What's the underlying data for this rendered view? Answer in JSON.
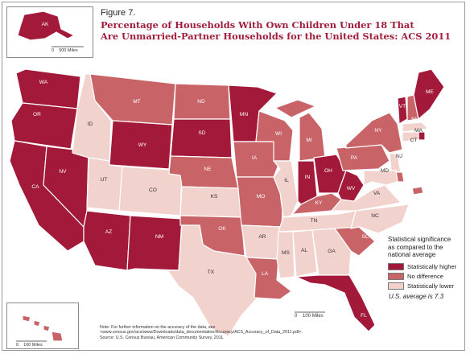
{
  "figure": {
    "label": "Figure 7.",
    "title_line1": "Percentage of Households With Own Children Under 18 That",
    "title_line2": "Are Unmarried-Partner Households for the United States: ACS 2011"
  },
  "colors": {
    "higher": "#a3193a",
    "no_difference": "#c86468",
    "lower": "#f2d2cc",
    "border": "#ffffff"
  },
  "legend": {
    "title_line1": "Statistical significance",
    "title_line2": "as compared to the",
    "title_line3": "national average",
    "items": [
      {
        "label": "Statistically higher",
        "category": "higher"
      },
      {
        "label": "No difference",
        "category": "no_difference"
      },
      {
        "label": "Statistically lower",
        "category": "lower"
      }
    ],
    "average_note": "U.S. average is 7.3"
  },
  "scales": {
    "main": {
      "zero": "0",
      "label": "100 Miles"
    },
    "alaska": {
      "zero": "0",
      "label": "500 Miles"
    },
    "hawaii": {
      "zero": "0",
      "label": "100 Miles"
    }
  },
  "note": {
    "line1": "Note: For further information on the accuracy of the data, see",
    "line2": "<www.census.gov/acs/www/Downloads/data_documentation/Accuracy/ACS_Accuracy_of_Data_2011.pdf>.",
    "line3": "Source: U.S. Census Bureau, American Community Survey, 2011."
  },
  "states": [
    {
      "abbr": "WA",
      "category": "higher"
    },
    {
      "abbr": "OR",
      "category": "higher"
    },
    {
      "abbr": "CA",
      "category": "higher"
    },
    {
      "abbr": "NV",
      "category": "higher"
    },
    {
      "abbr": "ID",
      "category": "lower"
    },
    {
      "abbr": "MT",
      "category": "no_difference"
    },
    {
      "abbr": "WY",
      "category": "higher"
    },
    {
      "abbr": "UT",
      "category": "lower"
    },
    {
      "abbr": "AZ",
      "category": "higher"
    },
    {
      "abbr": "CO",
      "category": "lower"
    },
    {
      "abbr": "NM",
      "category": "higher"
    },
    {
      "abbr": "ND",
      "category": "no_difference"
    },
    {
      "abbr": "SD",
      "category": "higher"
    },
    {
      "abbr": "NE",
      "category": "no_difference"
    },
    {
      "abbr": "KS",
      "category": "lower"
    },
    {
      "abbr": "OK",
      "category": "no_difference"
    },
    {
      "abbr": "TX",
      "category": "lower"
    },
    {
      "abbr": "MN",
      "category": "higher"
    },
    {
      "abbr": "IA",
      "category": "no_difference"
    },
    {
      "abbr": "MO",
      "category": "no_difference"
    },
    {
      "abbr": "AR",
      "category": "lower"
    },
    {
      "abbr": "LA",
      "category": "no_difference"
    },
    {
      "abbr": "WI",
      "category": "no_difference"
    },
    {
      "abbr": "IL",
      "category": "lower"
    },
    {
      "abbr": "MI",
      "category": "no_difference"
    },
    {
      "abbr": "IN",
      "category": "higher"
    },
    {
      "abbr": "OH",
      "category": "higher"
    },
    {
      "abbr": "KY",
      "category": "no_difference"
    },
    {
      "abbr": "TN",
      "category": "lower"
    },
    {
      "abbr": "MS",
      "category": "lower"
    },
    {
      "abbr": "AL",
      "category": "lower"
    },
    {
      "abbr": "GA",
      "category": "lower"
    },
    {
      "abbr": "FL",
      "category": "higher"
    },
    {
      "abbr": "SC",
      "category": "no_difference"
    },
    {
      "abbr": "NC",
      "category": "lower"
    },
    {
      "abbr": "VA",
      "category": "lower"
    },
    {
      "abbr": "WV",
      "category": "higher"
    },
    {
      "abbr": "PA",
      "category": "no_difference"
    },
    {
      "abbr": "NY",
      "category": "no_difference"
    },
    {
      "abbr": "VT",
      "category": "higher"
    },
    {
      "abbr": "NH",
      "category": "no_difference"
    },
    {
      "abbr": "ME",
      "category": "higher"
    },
    {
      "abbr": "MA",
      "category": "lower"
    },
    {
      "abbr": "RI",
      "category": "higher"
    },
    {
      "abbr": "CT",
      "category": "lower"
    },
    {
      "abbr": "NJ",
      "category": "lower"
    },
    {
      "abbr": "DE",
      "category": "no_difference"
    },
    {
      "abbr": "MD",
      "category": "lower"
    },
    {
      "abbr": "DC",
      "category": "no_difference"
    },
    {
      "abbr": "AK",
      "category": "higher"
    },
    {
      "abbr": "HI",
      "category": "no_difference"
    }
  ]
}
